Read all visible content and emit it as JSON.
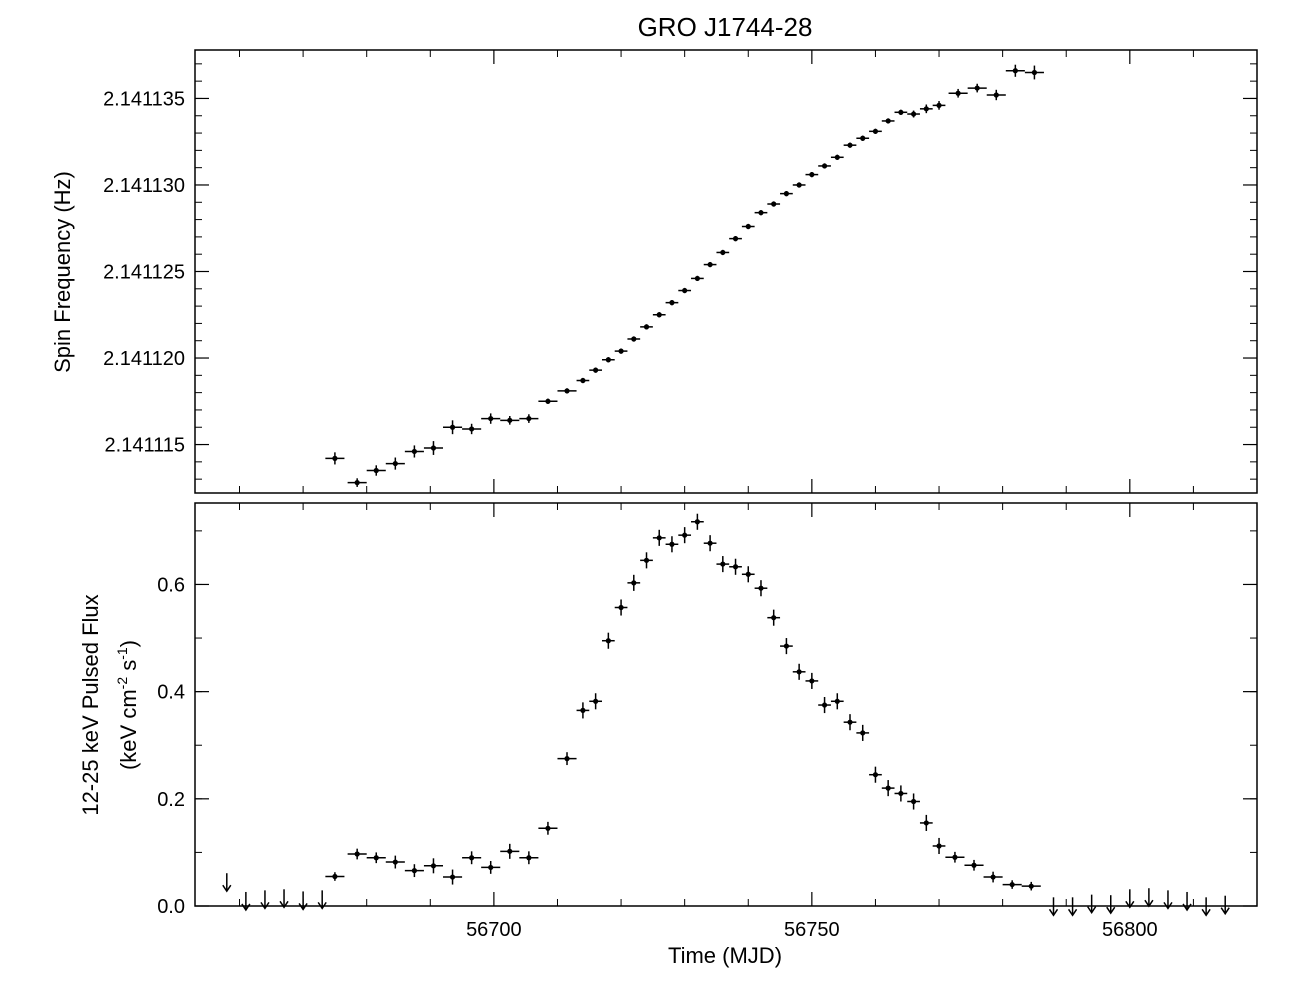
{
  "title": "GRO J1744-28",
  "colors": {
    "ink": "#000000",
    "background": "#ffffff"
  },
  "chart_data": [
    {
      "type": "scatter",
      "panel": "top",
      "title": "GRO J1744-28",
      "xlabel": "",
      "ylabel": "Spin Frequency (Hz)",
      "xlim": [
        56653,
        56820
      ],
      "ylim": [
        2.1411122,
        2.1411378
      ],
      "yticks": [
        2.141115,
        2.14112,
        2.141125,
        2.14113,
        2.141135
      ],
      "ytick_labels": [
        "2.141115",
        "2.141120",
        "2.141125",
        "2.141130",
        "2.141135"
      ],
      "grid": false,
      "legend": "none",
      "series": [
        {
          "marker": "point-with-errorbars",
          "x": [
            56675.0,
            56678.5,
            56681.5,
            56684.5,
            56687.5,
            56690.5,
            56693.5,
            56696.5,
            56699.5,
            56702.5,
            56705.5,
            56708.5,
            56711.5,
            56714,
            56716,
            56718,
            56720,
            56722,
            56724,
            56726,
            56728,
            56730,
            56732,
            56734,
            56736,
            56738,
            56740,
            56742,
            56744,
            56746,
            56748,
            56750,
            56752,
            56754,
            56756,
            56758,
            56760,
            56762,
            56764,
            56766,
            56768,
            56770,
            56773,
            56776,
            56779,
            56782,
            56785
          ],
          "y": [
            2.1411142,
            2.1411128,
            2.1411135,
            2.1411139,
            2.1411146,
            2.1411148,
            2.141116,
            2.1411159,
            2.1411165,
            2.1411164,
            2.1411165,
            2.1411175,
            2.1411181,
            2.1411187,
            2.1411193,
            2.1411199,
            2.1411204,
            2.1411211,
            2.1411218,
            2.1411225,
            2.1411232,
            2.1411239,
            2.1411246,
            2.1411254,
            2.1411261,
            2.1411269,
            2.1411276,
            2.1411284,
            2.1411289,
            2.1411295,
            2.14113,
            2.1411306,
            2.1411311,
            2.1411316,
            2.1411323,
            2.1411327,
            2.1411331,
            2.1411337,
            2.1411342,
            2.1411341,
            2.1411344,
            2.1411346,
            2.1411353,
            2.1411356,
            2.1411352,
            2.1411366,
            2.1411365
          ],
          "xerr": [
            1.5,
            1.5,
            1.5,
            1.5,
            1.5,
            1.5,
            1.5,
            1.5,
            1.5,
            1.5,
            1.5,
            1.5,
            1.5,
            1,
            1,
            1,
            1,
            1,
            1,
            1,
            1,
            1,
            1,
            1,
            1,
            1,
            1,
            1,
            1,
            1,
            1,
            1,
            1,
            1,
            1,
            1,
            1,
            1,
            1,
            1,
            1,
            1,
            1.5,
            1.5,
            1.5,
            1.5,
            1.5
          ],
          "yerr": [
            3.5e-07,
            2.5e-07,
            3e-07,
            3.5e-07,
            3.5e-07,
            4e-07,
            4e-07,
            3e-07,
            3e-07,
            2.5e-07,
            2.5e-07,
            1.5e-07,
            1.5e-07,
            1.5e-07,
            1.5e-07,
            1.5e-07,
            1.5e-07,
            1.5e-07,
            1.5e-07,
            1.5e-07,
            1.5e-07,
            1.5e-07,
            1.5e-07,
            1.5e-07,
            1.5e-07,
            1.5e-07,
            1.5e-07,
            1.5e-07,
            1.5e-07,
            1.5e-07,
            1.5e-07,
            1.5e-07,
            1.5e-07,
            1.5e-07,
            1.5e-07,
            1.5e-07,
            1.5e-07,
            1.5e-07,
            1.5e-07,
            2e-07,
            2.5e-07,
            2.5e-07,
            2.5e-07,
            2.5e-07,
            3e-07,
            3.5e-07,
            4e-07
          ]
        }
      ]
    },
    {
      "type": "scatter",
      "panel": "bottom",
      "xlabel": "Time (MJD)",
      "ylabel": "12-25 keV Pulsed Flux",
      "ylabel_line2": {
        "prefix": "(keV cm",
        "exp1": "-2",
        "middle": " s",
        "exp2": "-1",
        "suffix": ")"
      },
      "xlim": [
        56653,
        56820
      ],
      "ylim": [
        0,
        0.752
      ],
      "xticks": [
        56700,
        56750,
        56800
      ],
      "xtick_labels": [
        "56700",
        "56750",
        "56800"
      ],
      "yticks": [
        0.0,
        0.2,
        0.4,
        0.6
      ],
      "ytick_labels": [
        "0.0",
        "0.2",
        "0.4",
        "0.6"
      ],
      "grid": false,
      "legend": "none",
      "series": [
        {
          "marker": "point-with-errorbars",
          "x": [
            56675.0,
            56678.5,
            56681.5,
            56684.5,
            56687.5,
            56690.5,
            56693.5,
            56696.5,
            56699.5,
            56702.5,
            56705.5,
            56708.5,
            56711.5,
            56714,
            56716,
            56718,
            56720,
            56722,
            56724,
            56726,
            56728,
            56730,
            56732,
            56734,
            56736,
            56738,
            56740,
            56742,
            56744,
            56746,
            56748,
            56750,
            56752,
            56754,
            56756,
            56758,
            56760,
            56762,
            56764,
            56766,
            56768,
            56770,
            56772.5,
            56775.5,
            56778.5,
            56781.5,
            56784.5
          ],
          "y": [
            0.055,
            0.097,
            0.09,
            0.082,
            0.066,
            0.075,
            0.054,
            0.09,
            0.072,
            0.102,
            0.09,
            0.145,
            0.275,
            0.365,
            0.382,
            0.495,
            0.557,
            0.603,
            0.645,
            0.687,
            0.675,
            0.692,
            0.717,
            0.677,
            0.638,
            0.633,
            0.619,
            0.593,
            0.538,
            0.485,
            0.437,
            0.42,
            0.375,
            0.382,
            0.343,
            0.323,
            0.245,
            0.22,
            0.21,
            0.195,
            0.155,
            0.112,
            0.091,
            0.076,
            0.054,
            0.04,
            0.037
          ],
          "xerr": [
            1.5,
            1.5,
            1.5,
            1.5,
            1.5,
            1.5,
            1.5,
            1.5,
            1.5,
            1.5,
            1.5,
            1.5,
            1.5,
            1,
            1,
            1,
            1,
            1,
            1,
            1,
            1,
            1,
            1,
            1,
            1,
            1,
            1,
            1,
            1,
            1,
            1,
            1,
            1,
            1,
            1,
            1,
            1,
            1,
            1,
            1,
            1,
            1,
            1.5,
            1.5,
            1.5,
            1.5,
            1.5
          ],
          "yerr": [
            0.008,
            0.01,
            0.01,
            0.012,
            0.012,
            0.014,
            0.014,
            0.012,
            0.012,
            0.014,
            0.012,
            0.012,
            0.012,
            0.015,
            0.015,
            0.015,
            0.015,
            0.015,
            0.015,
            0.015,
            0.015,
            0.015,
            0.015,
            0.015,
            0.015,
            0.015,
            0.015,
            0.015,
            0.015,
            0.015,
            0.015,
            0.015,
            0.015,
            0.015,
            0.015,
            0.015,
            0.015,
            0.015,
            0.015,
            0.015,
            0.015,
            0.015,
            0.01,
            0.01,
            0.01,
            0.008,
            0.008
          ]
        },
        {
          "marker": "upper-limit-arrow",
          "x": [
            56658,
            56661,
            56664,
            56667,
            56670,
            56673,
            56788,
            56791,
            56794,
            56797,
            56800,
            56803,
            56806,
            56809,
            56812,
            56815
          ],
          "y": [
            0.05,
            0.015,
            0.018,
            0.02,
            0.016,
            0.018,
            0.005,
            0.005,
            0.01,
            0.009,
            0.02,
            0.022,
            0.018,
            0.015,
            0.005,
            0.008
          ]
        }
      ]
    }
  ]
}
